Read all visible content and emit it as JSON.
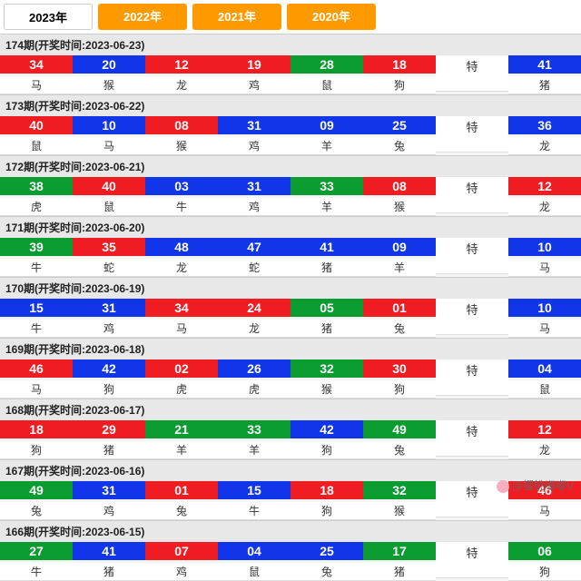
{
  "tabs": [
    {
      "label": "2023年",
      "active": true
    },
    {
      "label": "2022年",
      "active": false
    },
    {
      "label": "2021年",
      "active": false
    },
    {
      "label": "2020年",
      "active": false
    }
  ],
  "colors": {
    "r": "#ef1c22",
    "b": "#1135e9",
    "g": "#0a9c31",
    "tab_active_bg": "#ffffff",
    "tab_inactive_bg": "#ff9900",
    "header_bg": "#e8e8e8"
  },
  "te_label": "特",
  "periods": [
    {
      "header": "174期(开奖时间:2023-06-23)",
      "balls": [
        {
          "n": "34",
          "c": "r",
          "z": "马"
        },
        {
          "n": "20",
          "c": "b",
          "z": "猴"
        },
        {
          "n": "12",
          "c": "r",
          "z": "龙"
        },
        {
          "n": "19",
          "c": "r",
          "z": "鸡"
        },
        {
          "n": "28",
          "c": "g",
          "z": "鼠"
        },
        {
          "n": "18",
          "c": "r",
          "z": "狗"
        }
      ],
      "special": {
        "n": "41",
        "c": "b",
        "z": "猪"
      }
    },
    {
      "header": "173期(开奖时间:2023-06-22)",
      "balls": [
        {
          "n": "40",
          "c": "r",
          "z": "鼠"
        },
        {
          "n": "10",
          "c": "b",
          "z": "马"
        },
        {
          "n": "08",
          "c": "r",
          "z": "猴"
        },
        {
          "n": "31",
          "c": "b",
          "z": "鸡"
        },
        {
          "n": "09",
          "c": "b",
          "z": "羊"
        },
        {
          "n": "25",
          "c": "b",
          "z": "兔"
        }
      ],
      "special": {
        "n": "36",
        "c": "b",
        "z": "龙"
      }
    },
    {
      "header": "172期(开奖时间:2023-06-21)",
      "balls": [
        {
          "n": "38",
          "c": "g",
          "z": "虎"
        },
        {
          "n": "40",
          "c": "r",
          "z": "鼠"
        },
        {
          "n": "03",
          "c": "b",
          "z": "牛"
        },
        {
          "n": "31",
          "c": "b",
          "z": "鸡"
        },
        {
          "n": "33",
          "c": "g",
          "z": "羊"
        },
        {
          "n": "08",
          "c": "r",
          "z": "猴"
        }
      ],
      "special": {
        "n": "12",
        "c": "r",
        "z": "龙"
      }
    },
    {
      "header": "171期(开奖时间:2023-06-20)",
      "balls": [
        {
          "n": "39",
          "c": "g",
          "z": "牛"
        },
        {
          "n": "35",
          "c": "r",
          "z": "蛇"
        },
        {
          "n": "48",
          "c": "b",
          "z": "龙"
        },
        {
          "n": "47",
          "c": "b",
          "z": "蛇"
        },
        {
          "n": "41",
          "c": "b",
          "z": "猪"
        },
        {
          "n": "09",
          "c": "b",
          "z": "羊"
        }
      ],
      "special": {
        "n": "10",
        "c": "b",
        "z": "马"
      }
    },
    {
      "header": "170期(开奖时间:2023-06-19)",
      "balls": [
        {
          "n": "15",
          "c": "b",
          "z": "牛"
        },
        {
          "n": "31",
          "c": "b",
          "z": "鸡"
        },
        {
          "n": "34",
          "c": "r",
          "z": "马"
        },
        {
          "n": "24",
          "c": "r",
          "z": "龙"
        },
        {
          "n": "05",
          "c": "g",
          "z": "猪"
        },
        {
          "n": "01",
          "c": "r",
          "z": "兔"
        }
      ],
      "special": {
        "n": "10",
        "c": "b",
        "z": "马"
      }
    },
    {
      "header": "169期(开奖时间:2023-06-18)",
      "balls": [
        {
          "n": "46",
          "c": "r",
          "z": "马"
        },
        {
          "n": "42",
          "c": "b",
          "z": "狗"
        },
        {
          "n": "02",
          "c": "r",
          "z": "虎"
        },
        {
          "n": "26",
          "c": "b",
          "z": "虎"
        },
        {
          "n": "32",
          "c": "g",
          "z": "猴"
        },
        {
          "n": "30",
          "c": "r",
          "z": "狗"
        }
      ],
      "special": {
        "n": "04",
        "c": "b",
        "z": "鼠"
      }
    },
    {
      "header": "168期(开奖时间:2023-06-17)",
      "balls": [
        {
          "n": "18",
          "c": "r",
          "z": "狗"
        },
        {
          "n": "29",
          "c": "r",
          "z": "猪"
        },
        {
          "n": "21",
          "c": "g",
          "z": "羊"
        },
        {
          "n": "33",
          "c": "g",
          "z": "羊"
        },
        {
          "n": "42",
          "c": "b",
          "z": "狗"
        },
        {
          "n": "49",
          "c": "g",
          "z": "兔"
        }
      ],
      "special": {
        "n": "12",
        "c": "r",
        "z": "龙"
      }
    },
    {
      "header": "167期(开奖时间:2023-06-16)",
      "balls": [
        {
          "n": "49",
          "c": "g",
          "z": "兔"
        },
        {
          "n": "31",
          "c": "b",
          "z": "鸡"
        },
        {
          "n": "01",
          "c": "r",
          "z": "兔"
        },
        {
          "n": "15",
          "c": "b",
          "z": "牛"
        },
        {
          "n": "18",
          "c": "r",
          "z": "狗"
        },
        {
          "n": "32",
          "c": "g",
          "z": "猴"
        }
      ],
      "special": {
        "n": "46",
        "c": "r",
        "z": "马"
      }
    },
    {
      "header": "166期(开奖时间:2023-06-15)",
      "balls": [
        {
          "n": "27",
          "c": "g",
          "z": "牛"
        },
        {
          "n": "41",
          "c": "b",
          "z": "猪"
        },
        {
          "n": "07",
          "c": "r",
          "z": "鸡"
        },
        {
          "n": "04",
          "c": "b",
          "z": "鼠"
        },
        {
          "n": "25",
          "c": "b",
          "z": "兔"
        },
        {
          "n": "17",
          "c": "g",
          "z": "猪"
        }
      ],
      "special": {
        "n": "06",
        "c": "g",
        "z": "狗"
      }
    }
  ],
  "watermark": "@櫻桃嘟嘟V"
}
